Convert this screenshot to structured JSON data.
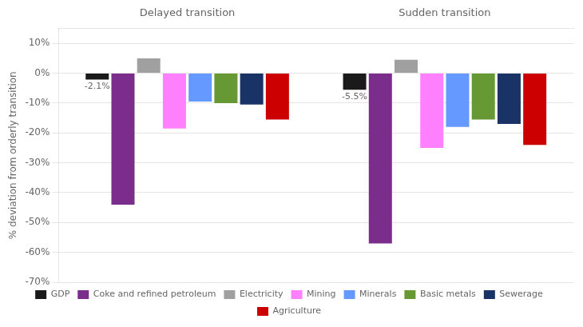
{
  "chart_data": {
    "type": "bar",
    "categories": [
      "Delayed transition",
      "Sudden transition"
    ],
    "series": [
      {
        "name": "GDP",
        "color": "#1a1a1a",
        "values": [
          -2.1,
          -5.5
        ],
        "value_labels": [
          "-2.1%",
          "-5.5%"
        ]
      },
      {
        "name": "Coke and refined petroleum",
        "color": "#7b2d8b",
        "values": [
          -44.0,
          -57.0
        ]
      },
      {
        "name": "Electricity",
        "color": "#a0a0a0",
        "values": [
          5.0,
          4.5
        ]
      },
      {
        "name": "Mining",
        "color": "#ff80ff",
        "values": [
          -18.5,
          -25.0
        ]
      },
      {
        "name": "Minerals",
        "color": "#6699ff",
        "values": [
          -9.5,
          -18.0
        ]
      },
      {
        "name": "Basic metals",
        "color": "#669933",
        "values": [
          -10.0,
          -15.5
        ]
      },
      {
        "name": "Sewerage",
        "color": "#1a3366",
        "values": [
          -10.5,
          -17.0
        ]
      },
      {
        "name": "Agriculture",
        "color": "#cc0000",
        "values": [
          -15.5,
          -24.0
        ]
      }
    ],
    "ylabel": "% deviation from orderly transition",
    "ylim": [
      -70,
      15
    ],
    "yticks": [
      {
        "value": 10,
        "label": "10%"
      },
      {
        "value": 0,
        "label": "0%"
      },
      {
        "value": -10,
        "label": "-10%"
      },
      {
        "value": -20,
        "label": "-20%"
      },
      {
        "value": -30,
        "label": "-30%"
      },
      {
        "value": -40,
        "label": "-40%"
      },
      {
        "value": -50,
        "label": "-50%"
      },
      {
        "value": -60,
        "label": "-60%"
      },
      {
        "value": -70,
        "label": "-70%"
      }
    ],
    "grid": true,
    "legend": "bottom"
  }
}
